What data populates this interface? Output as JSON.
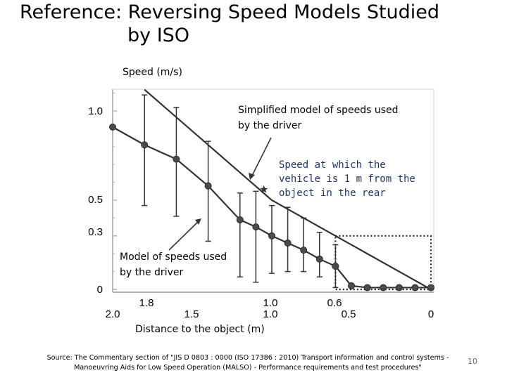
{
  "slide": {
    "title_line1": "Reference: Reversing Speed Models Studied",
    "title_line2": "by ISO",
    "source_line1": "Source: The Commentary section of \"JIS D 0803 : 0000 (ISO 17386 : 2010) Transport information and control systems -",
    "source_line2": "Manoeuvring Aids for Low Speed Operation (MALSO) - Performance requirements and test procedures\"",
    "page_number": "10"
  },
  "colors": {
    "line": "#333333",
    "marker": "#4a4a4a",
    "dotted": "#222222"
  },
  "chart_data": {
    "type": "line",
    "ylabel": "Speed (m/s)",
    "xlabel": "Distance to the object (m)",
    "xlim": [
      2.0,
      0
    ],
    "ylim": [
      0,
      1.1
    ],
    "y_ticks": [
      "1.0",
      "0.5",
      "0.3",
      "0"
    ],
    "y_tick_values": [
      1.0,
      0.5,
      0.3,
      0
    ],
    "x_ticks_top": [
      "1.8",
      "1.0",
      "0.6"
    ],
    "x_ticks_top_values": [
      1.8,
      1.0,
      0.6
    ],
    "x_ticks_bottom": [
      "2.0",
      "1.5",
      "1.0",
      "0.5",
      "0"
    ],
    "x_ticks_bottom_values": [
      2.0,
      1.5,
      1.0,
      0.5,
      0
    ],
    "series": [
      {
        "name": "Simplified model of speeds used by the driver",
        "x": [
          1.8,
          1.0,
          0
        ],
        "y": [
          1.12,
          0.5,
          0
        ]
      },
      {
        "name": "Model of speeds used by the driver",
        "x": [
          2.0,
          1.8,
          1.6,
          1.4,
          1.2,
          1.1,
          1.0,
          0.9,
          0.8,
          0.7,
          0.6,
          0.5,
          0.4,
          0.3,
          0.2,
          0.1,
          0
        ],
        "y": [
          0.91,
          0.81,
          0.73,
          0.58,
          0.39,
          0.35,
          0.3,
          0.26,
          0.22,
          0.17,
          0.13,
          0.02,
          0.01,
          0.01,
          0.01,
          0.01,
          0.01
        ],
        "err_low": [
          null,
          0.47,
          0.41,
          0.27,
          0.07,
          0.04,
          0.09,
          0.1,
          0.1,
          0.07,
          0.01,
          null,
          null,
          null,
          null,
          null,
          null
        ],
        "err_high": [
          null,
          1.09,
          1.02,
          0.83,
          0.54,
          0.55,
          0.47,
          0.46,
          0.4,
          0.32,
          0.25,
          null,
          null,
          null,
          null,
          null,
          null
        ]
      }
    ],
    "highlight_box": {
      "x": [
        0.6,
        0
      ],
      "y": [
        0,
        0.3
      ]
    },
    "annotations": {
      "simplified": "Simplified model of speeds used by the driver",
      "simplified_line1": "Simplified model of speeds used",
      "simplified_line2": "by the driver",
      "one_m_line1": "Speed at which the",
      "one_m_line2": "vehicle is 1 m from the",
      "one_m_line3": "object in the rear",
      "driver_line1": "Model of speeds used",
      "driver_line2": "by the driver"
    }
  }
}
